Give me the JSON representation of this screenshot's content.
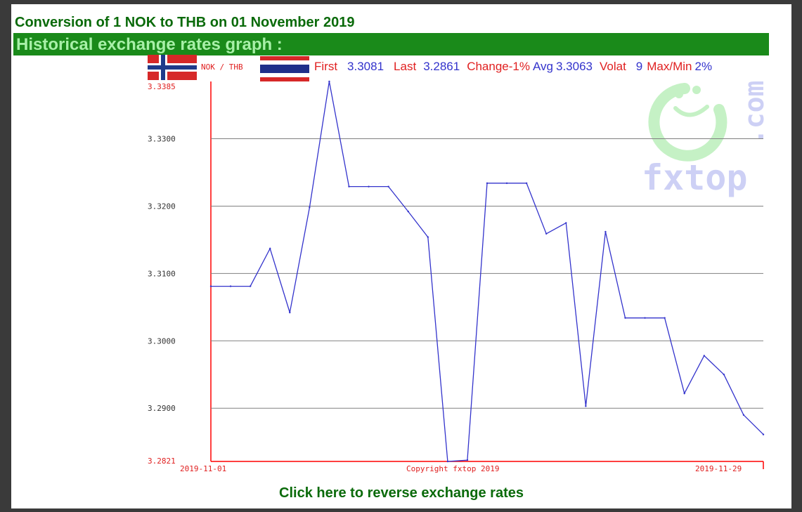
{
  "header": {
    "conversion_title": "Conversion of 1 NOK to THB on 01 November 2019",
    "historical_title": "Historical exchange rates graph :"
  },
  "colors": {
    "green_dark": "#0a6a0a",
    "green_bar": "#1a8a1a",
    "green_light_text": "#a8f0a8",
    "series_blue": "#3333cc",
    "axis_red": "#ff0000",
    "label_red": "#e02020",
    "grid_gray": "#808080"
  },
  "stats": {
    "pair": "NOK / THB",
    "first_label": "First",
    "first_value": "3.3081",
    "last_label": "Last",
    "last_value": "3.2861",
    "change_label": "Change",
    "change_value": "-1%",
    "avg_label": "Avg",
    "avg_value": "3.3063",
    "volat_label": "Volat",
    "volat_value": "9",
    "maxmin_label": "Max/Min",
    "maxmin_value": "2%"
  },
  "icons": {
    "flag_left": "norway-flag-icon",
    "flag_right": "thailand-flag-icon",
    "watermark": "fxtop-logo"
  },
  "watermark": {
    "text": "fxtop",
    "suffix": ".com"
  },
  "chart_data": {
    "type": "line",
    "title": "",
    "xlabel": "",
    "ylabel": "",
    "ylim": [
      3.2821,
      3.3385
    ],
    "y_max_label": "3.3385",
    "y_min_label": "3.2821",
    "y_ticks": [
      "3.3300",
      "3.3200",
      "3.3100",
      "3.3000",
      "3.2900"
    ],
    "y_tick_values": [
      3.33,
      3.32,
      3.31,
      3.3,
      3.29
    ],
    "x_start_label": "2019-11-01",
    "x_end_label": "2019-11-29",
    "x_center_label": "Copyright fxtop 2019",
    "grid": true,
    "series": [
      {
        "name": "NOK / THB",
        "dates": [
          "2019-11-01",
          "2019-11-02",
          "2019-11-03",
          "2019-11-04",
          "2019-11-05",
          "2019-11-06",
          "2019-11-07",
          "2019-11-08",
          "2019-11-09",
          "2019-11-10",
          "2019-11-11",
          "2019-11-12",
          "2019-11-13",
          "2019-11-14",
          "2019-11-15",
          "2019-11-16",
          "2019-11-17",
          "2019-11-18",
          "2019-11-19",
          "2019-11-20",
          "2019-11-21",
          "2019-11-22",
          "2019-11-23",
          "2019-11-24",
          "2019-11-25",
          "2019-11-26",
          "2019-11-27",
          "2019-11-28",
          "2019-11-29"
        ],
        "values": [
          3.3081,
          3.3081,
          3.3081,
          3.3137,
          3.3042,
          3.3198,
          3.3385,
          3.3229,
          3.3229,
          3.3229,
          3.3192,
          3.3154,
          3.2821,
          3.2823,
          3.3234,
          3.3234,
          3.3234,
          3.3159,
          3.3175,
          3.2903,
          3.3162,
          3.3034,
          3.3034,
          3.3034,
          3.2922,
          3.2978,
          3.295,
          3.289,
          3.2861
        ]
      }
    ]
  },
  "footer": {
    "reverse_link": "Click here to reverse exchange rates"
  }
}
